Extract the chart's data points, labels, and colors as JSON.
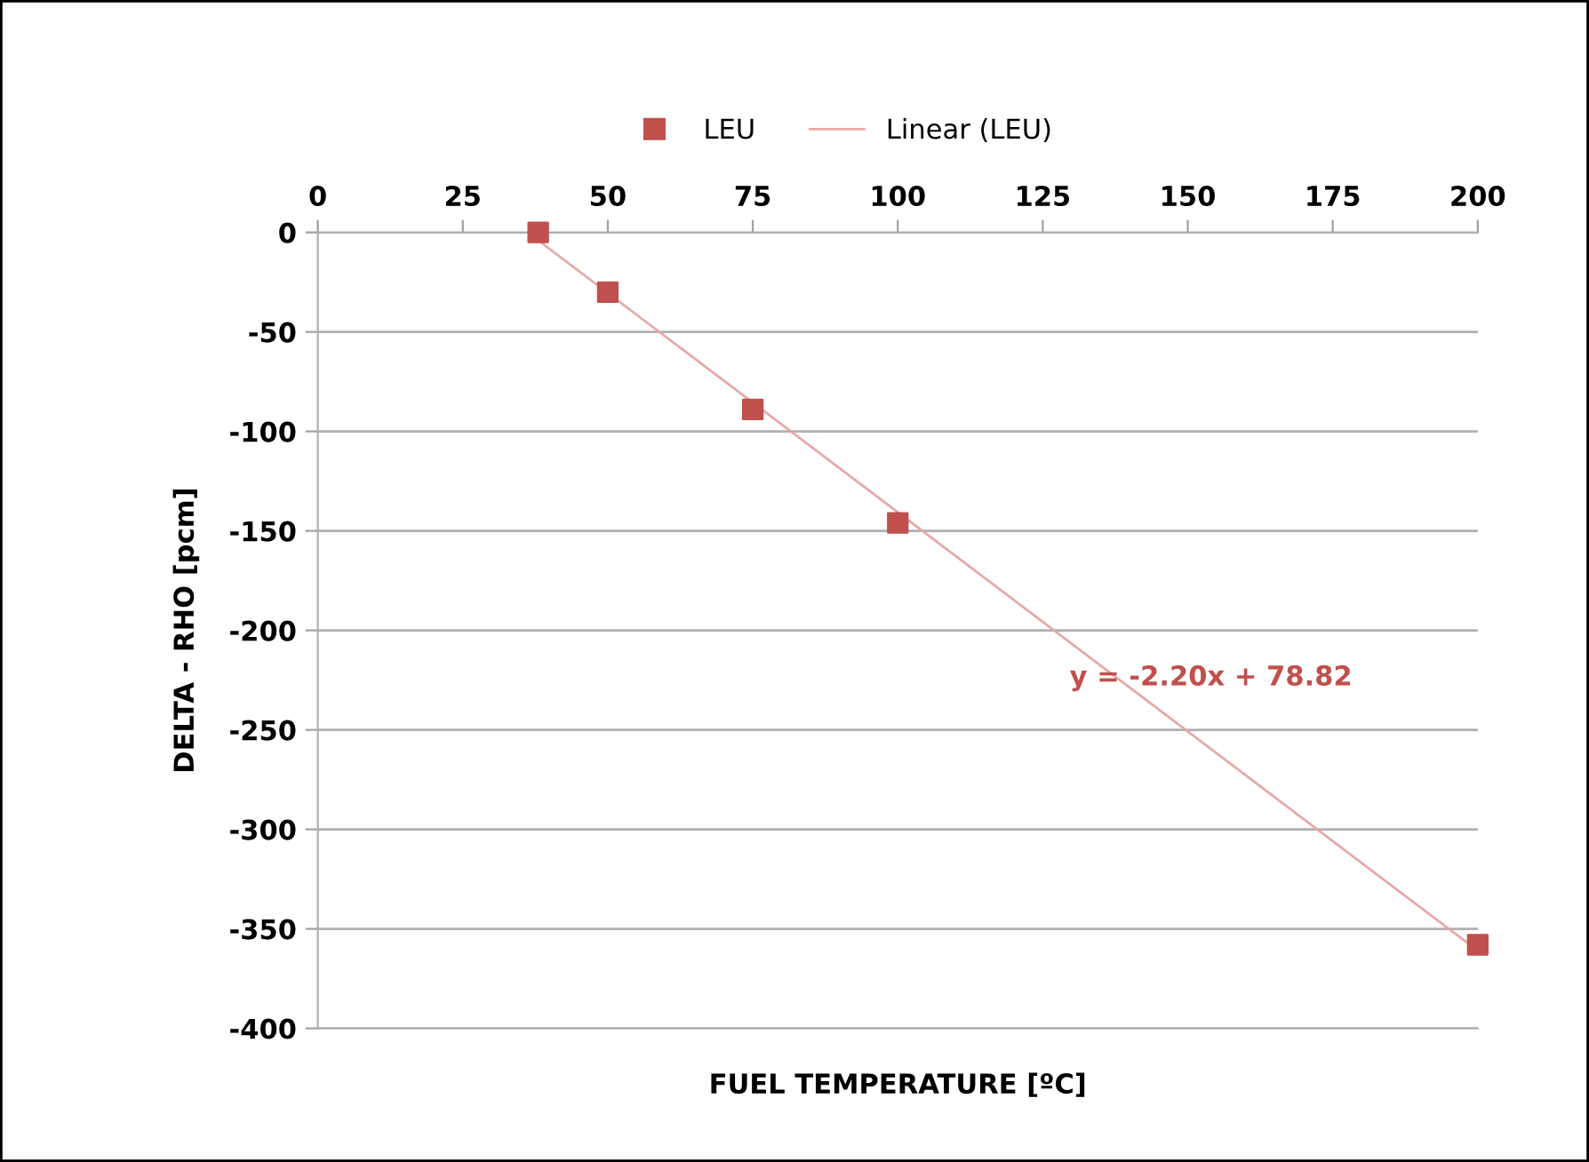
{
  "chart_data": {
    "type": "scatter",
    "xlabel": "FUEL TEMPERATURE [ºC]",
    "ylabel": "DELTA - RHO [pcm]",
    "x": [
      38,
      50,
      75,
      100,
      200
    ],
    "series": [
      {
        "name": "LEU",
        "color": "#c0504d",
        "marker": "square",
        "values": [
          0,
          -30,
          -89,
          -146,
          -358
        ]
      },
      {
        "name": "Linear (LEU)",
        "type": "line",
        "color": "#e6a9a8",
        "x": [
          38,
          200
        ],
        "values": [
          -4,
          -361
        ]
      }
    ],
    "annotations": [
      "y = -2.20x + 78.82"
    ],
    "xlim": [
      0,
      200
    ],
    "xticks": [
      0,
      25,
      50,
      75,
      100,
      125,
      150,
      175,
      200
    ],
    "ylim": [
      -400,
      0
    ],
    "yticks": [
      -400,
      -350,
      -300,
      -250,
      -200,
      -150,
      -100,
      -50,
      0
    ],
    "grid": "y",
    "legend": "top"
  }
}
